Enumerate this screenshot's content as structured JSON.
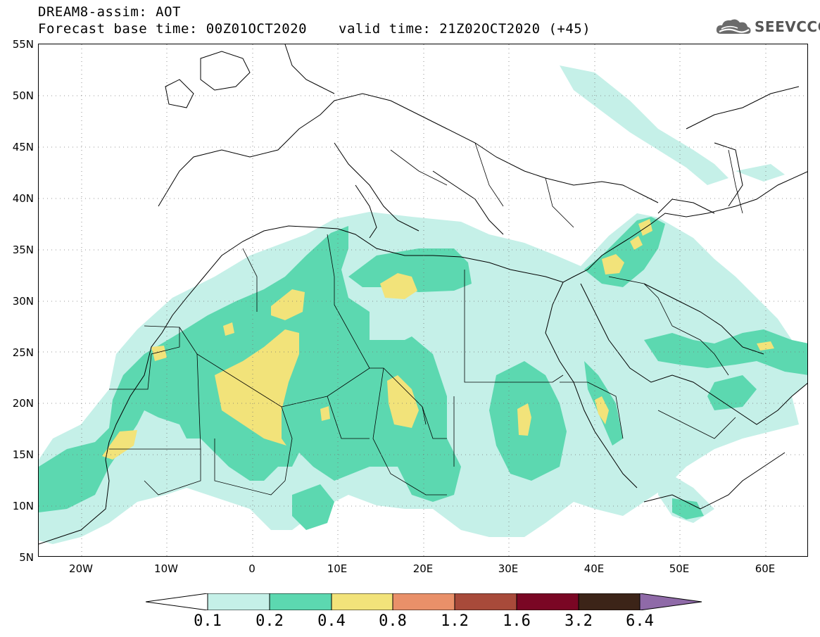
{
  "header": {
    "title": "DREAM8-assim: AOT",
    "base_time": "Forecast base time: 00Z01OCT2020",
    "valid_time": "valid time: 21Z02OCT2020 (+45)"
  },
  "logo": {
    "text": "SEEVCCC",
    "icon": "cloud-icon"
  },
  "map": {
    "lat_labels": [
      "55N",
      "50N",
      "45N",
      "40N",
      "35N",
      "30N",
      "25N",
      "20N",
      "15N",
      "10N",
      "5N"
    ],
    "lon_labels": [
      "20W",
      "10W",
      "0",
      "10E",
      "20E",
      "30E",
      "40E",
      "50E",
      "60E"
    ],
    "lon_range": [
      -25,
      65
    ],
    "lat_range": [
      5,
      55
    ],
    "grid": "dotted"
  },
  "colorbar": {
    "labels": [
      "0.1",
      "0.2",
      "0.4",
      "0.8",
      "1.2",
      "1.6",
      "3.2",
      "6.4"
    ],
    "colors": [
      "#ffffff",
      "#c5f0e8",
      "#5cd8b0",
      "#f2e37a",
      "#e99069",
      "#a84a3a",
      "#7a0624",
      "#3c2418",
      "#8f6aa8"
    ]
  }
}
